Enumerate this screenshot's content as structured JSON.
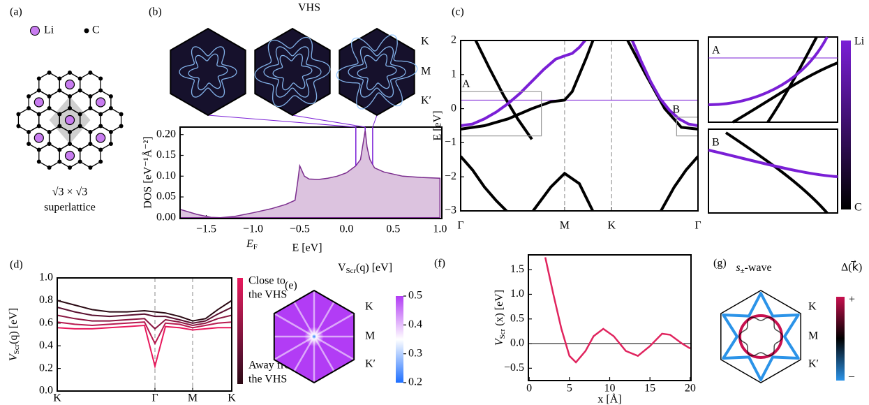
{
  "panel_labels": [
    "(a)",
    "(b)",
    "(c)",
    "(d)",
    "(e)",
    "(f)",
    "(g)"
  ],
  "lattice": {
    "legend": [
      "Li",
      "C"
    ],
    "caption": [
      "√3 × √3",
      "superlattice"
    ]
  },
  "chart_data": [
    {
      "type": "area",
      "title": "VHS",
      "xlabel": "E [eV]",
      "ylabel": "DOS [eV⁻¹Å⁻²]",
      "x": [
        -1.78,
        -1.6,
        -1.45,
        -1.35,
        -1.2,
        -1.0,
        -0.8,
        -0.65,
        -0.55,
        -0.52,
        -0.5,
        -0.45,
        -0.4,
        -0.3,
        -0.2,
        -0.1,
        0.0,
        0.1,
        0.15,
        0.2,
        0.22,
        0.25,
        0.3,
        0.4,
        0.6,
        0.8,
        1.0
      ],
      "values": [
        0.02,
        0.008,
        0.001,
        0.0,
        0.003,
        0.012,
        0.022,
        0.032,
        0.042,
        0.09,
        0.125,
        0.1,
        0.093,
        0.092,
        0.095,
        0.1,
        0.108,
        0.125,
        0.14,
        0.21,
        0.17,
        0.14,
        0.12,
        0.11,
        0.1,
        0.097,
        0.095
      ],
      "color": "#7b2d8e",
      "fill": "#dcc3df",
      "xlim": [
        -1.78,
        1.02
      ],
      "ylim": [
        -0.002,
        0.218
      ],
      "xticks": [
        {
          "value": -1.5,
          "label": "−1.5"
        },
        {
          "value": -1.0,
          "label": "−1.0"
        },
        {
          "value": -0.5,
          "label": "−0.5"
        },
        {
          "value": 0,
          "label": "0.0"
        },
        0.5,
        {
          "value": 1,
          "label": "1.0"
        }
      ],
      "yticks": [
        {
          "value": 0,
          "label": "0.00"
        },
        0.05,
        {
          "value": 0.1,
          "label": "0.10"
        },
        0.15,
        {
          "value": 0.2,
          "label": "0.20"
        }
      ],
      "vhs_lines": {
        "values": [
          0.1,
          0.2,
          0.28
        ],
        "color": "#7a1fd6"
      },
      "bz_labels": [
        "K",
        "M",
        "K′"
      ]
    },
    {
      "type": "line",
      "ylabel": "E [eV]",
      "xlim": [
        0,
        1
      ],
      "ylim": [
        -3,
        2
      ],
      "xticks": [
        {
          "value": 0,
          "label": "Γ"
        },
        {
          "value": 0.438,
          "label": "M"
        },
        {
          "value": 0.636,
          "label": "K"
        },
        {
          "value": 1,
          "label": "Γ"
        }
      ],
      "yticks": [
        {
          "value": -3,
          "label": "−3"
        },
        {
          "value": -2,
          "label": "−2"
        },
        {
          "value": -1,
          "label": "−1"
        },
        0,
        1,
        2
      ],
      "fermi_level": 0.25,
      "series": [
        {
          "color": "#000000",
          "x": [
            0,
            0.1,
            0.2,
            0.3,
            0.38,
            0.438,
            0.47,
            0.5,
            0.53,
            0.56
          ],
          "values": [
            -0.6,
            -0.5,
            -0.3,
            0.0,
            0.2,
            0.25,
            0.5,
            1.0,
            1.5,
            2.05
          ]
        },
        {
          "color": "#000000",
          "x": [
            0.06,
            0.12,
            0.18,
            0.24,
            0.3
          ],
          "values": [
            2.05,
            1.2,
            0.4,
            -0.3,
            -0.9
          ]
        },
        {
          "color": "#000000",
          "x": [
            0,
            0.05,
            0.1,
            0.15,
            0.2
          ],
          "values": [
            -1.4,
            -1.8,
            -2.3,
            -2.7,
            -3.05
          ]
        },
        {
          "color": "#000000",
          "x": [
            0.3,
            0.38,
            0.438,
            0.5,
            0.56
          ],
          "values": [
            -3.05,
            -2.3,
            -1.9,
            -2.2,
            -3.05
          ]
        },
        {
          "color": "#000000",
          "x": [
            0.7,
            0.78,
            0.86,
            0.93,
            1.0
          ],
          "values": [
            2.05,
            1.0,
            0.0,
            -0.55,
            -0.6
          ]
        },
        {
          "color": "#000000",
          "x": [
            0.84,
            0.9,
            0.95,
            1.0
          ],
          "values": [
            -3.05,
            -2.3,
            -1.8,
            -1.4
          ]
        },
        {
          "color": "#7a1fd6",
          "x": [
            0,
            0.05,
            0.1,
            0.15,
            0.2,
            0.25,
            0.3,
            0.35,
            0.4,
            0.438,
            0.47,
            0.5,
            0.53,
            null,
            0.72,
            0.76,
            0.8,
            0.84,
            0.88,
            0.92,
            0.96,
            1.0
          ],
          "values": [
            -0.5,
            -0.45,
            -0.3,
            -0.1,
            0.15,
            0.45,
            0.8,
            1.15,
            1.45,
            1.55,
            1.62,
            1.8,
            2.05,
            null,
            2.05,
            1.4,
            0.8,
            0.3,
            -0.05,
            -0.3,
            -0.45,
            -0.5
          ]
        }
      ],
      "boxes": [
        {
          "label": "A",
          "x": [
            0,
            0.34
          ],
          "y": [
            -0.8,
            0.5
          ]
        },
        {
          "label": "B",
          "x": [
            0.91,
            1.0
          ],
          "y": [
            -0.8,
            -0.25
          ]
        }
      ],
      "colorbar": {
        "labels": [
          "Li",
          "C"
        ],
        "colors": [
          "#7a1fd6",
          "#000000"
        ]
      }
    },
    {
      "type": "line",
      "ylabel": {
        "main": "V",
        "sub": "Scr",
        "rest": "(q) [eV]"
      },
      "xlim": [
        0,
        1
      ],
      "ylim": [
        0,
        1
      ],
      "xticks": [
        {
          "value": 0,
          "label": "K"
        },
        {
          "value": 0.56,
          "label": "Γ"
        },
        {
          "value": 0.776,
          "label": "M"
        },
        {
          "value": 1,
          "label": "K"
        }
      ],
      "yticks": [
        {
          "value": 0,
          "label": "0.0"
        },
        0.2,
        0.4,
        0.6,
        0.8,
        {
          "value": 1,
          "label": "1.0"
        }
      ],
      "x": [
        0,
        0.1,
        0.2,
        0.3,
        0.4,
        0.5,
        0.56,
        0.62,
        0.7,
        0.776,
        0.85,
        0.92,
        1.0
      ],
      "series": [
        {
          "color": "#2b0a14",
          "values": [
            0.8,
            0.76,
            0.72,
            0.7,
            0.7,
            0.71,
            0.7,
            0.69,
            0.66,
            0.62,
            0.64,
            0.72,
            0.8
          ]
        },
        {
          "color": "#5a1030",
          "values": [
            0.74,
            0.7,
            0.67,
            0.66,
            0.67,
            0.68,
            0.66,
            0.66,
            0.63,
            0.6,
            0.62,
            0.68,
            0.74
          ]
        },
        {
          "color": "#8a1540",
          "values": [
            0.67,
            0.64,
            0.62,
            0.62,
            0.63,
            0.64,
            0.55,
            0.63,
            0.61,
            0.58,
            0.6,
            0.64,
            0.67
          ]
        },
        {
          "color": "#b81a50",
          "values": [
            0.61,
            0.59,
            0.58,
            0.59,
            0.6,
            0.61,
            0.42,
            0.6,
            0.59,
            0.56,
            0.58,
            0.6,
            0.61
          ]
        },
        {
          "color": "#e8185c",
          "values": [
            0.56,
            0.55,
            0.55,
            0.56,
            0.57,
            0.58,
            0.22,
            0.57,
            0.56,
            0.54,
            0.55,
            0.56,
            0.56
          ]
        }
      ],
      "colorbar": {
        "title": {
          "main": "E",
          "sub": "F"
        },
        "top": [
          "Close to",
          "the VHS"
        ],
        "bottom": [
          "Away from",
          "the VHS"
        ]
      }
    },
    {
      "type": "heatmap",
      "title": {
        "main": "V",
        "sub": "Scr",
        "rest": "(q) [eV]"
      },
      "colorbar": {
        "lim": [
          0.2,
          0.5
        ],
        "ticks": [
          0.2,
          0.3,
          0.4,
          0.5
        ],
        "colors": [
          "#1e6fff",
          "#ffffff",
          "#b23cf5"
        ]
      },
      "bz_labels": [
        "K",
        "M",
        "K′"
      ]
    },
    {
      "type": "line",
      "ylabel": {
        "main": "V",
        "sub": "Scr",
        "rest": " (x) [eV]"
      },
      "xlabel": "x [Å]",
      "x": [
        2,
        3,
        4,
        5,
        5.8,
        7,
        8,
        9.2,
        10.5,
        12,
        13.5,
        15,
        16.5,
        17.5,
        19,
        20
      ],
      "values": [
        1.75,
        1.0,
        0.3,
        -0.25,
        -0.38,
        -0.15,
        0.15,
        0.3,
        0.15,
        -0.15,
        -0.25,
        -0.05,
        0.2,
        0.18,
        0.0,
        -0.1
      ],
      "color": "#e0245e",
      "xlim": [
        -0.1,
        20.1
      ],
      "ylim": [
        -0.75,
        1.8
      ],
      "xticks": [
        0,
        5,
        10,
        15,
        20
      ],
      "yticks": [
        {
          "value": -0.5,
          "label": "−0.5"
        },
        {
          "value": 0,
          "label": "0.0"
        },
        0.5,
        {
          "value": 1,
          "label": "1.0"
        },
        1.5
      ],
      "zero_line": 0
    },
    {
      "type": "gap",
      "title": {
        "main": "s",
        "sub": "±",
        "rest": "-wave"
      },
      "colorbar": {
        "label": "Δ(k⃗)",
        "top": "+",
        "bottom": "–",
        "colors": [
          "#2b93e8",
          "#000000",
          "#c8104f"
        ]
      },
      "bz_labels": [
        "K",
        "M",
        "K′"
      ]
    }
  ]
}
